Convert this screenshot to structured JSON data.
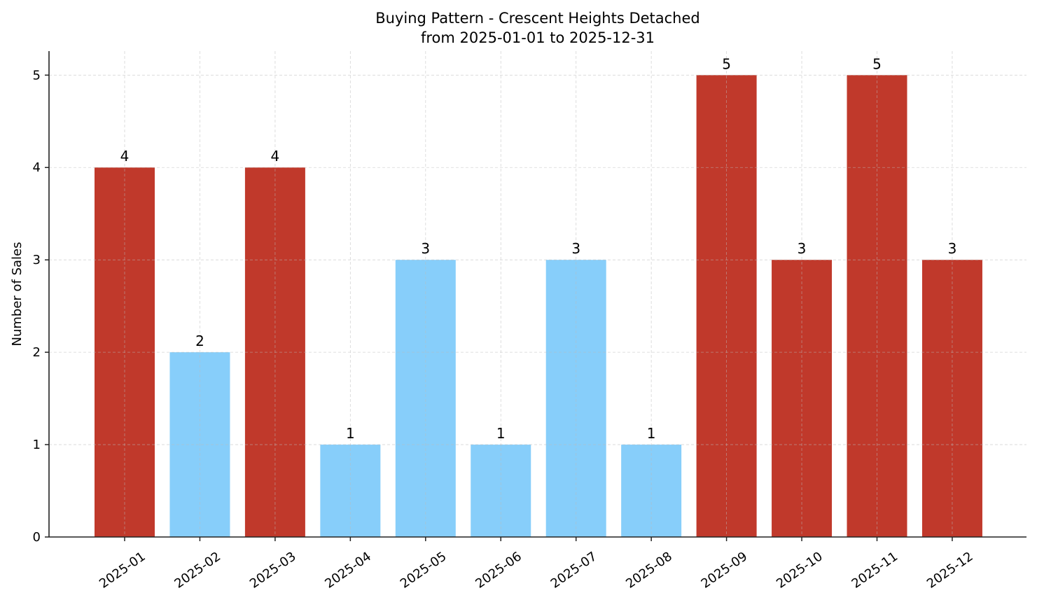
{
  "chart_data": {
    "type": "bar",
    "title": "Buying Pattern - Crescent Heights Detached",
    "subtitle": "from 2025-01-01 to 2025-12-31",
    "xlabel": "",
    "ylabel": "Number of Sales",
    "categories": [
      "2025-01",
      "2025-02",
      "2025-03",
      "2025-04",
      "2025-05",
      "2025-06",
      "2025-07",
      "2025-08",
      "2025-09",
      "2025-10",
      "2025-11",
      "2025-12"
    ],
    "values": [
      4,
      2,
      4,
      1,
      3,
      1,
      3,
      1,
      5,
      3,
      5,
      3
    ],
    "bar_colors": [
      "#c0392b",
      "#87cefa",
      "#c0392b",
      "#87cefa",
      "#87cefa",
      "#87cefa",
      "#87cefa",
      "#87cefa",
      "#c0392b",
      "#c0392b",
      "#c0392b",
      "#c0392b"
    ],
    "yticks": [
      0,
      1,
      2,
      3,
      4,
      5
    ],
    "ylim": [
      0,
      5.26
    ],
    "grid": true,
    "data_labels": true
  }
}
